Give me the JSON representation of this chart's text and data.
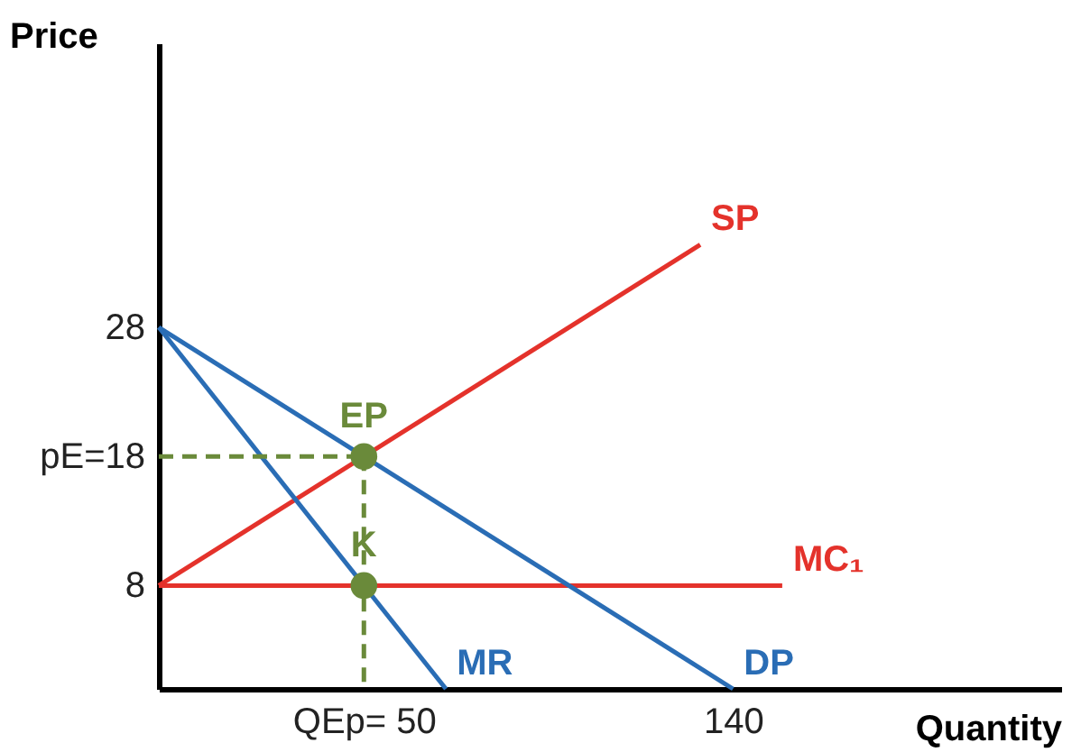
{
  "chart_data": {
    "type": "line",
    "xlabel": "Quantity",
    "ylabel": "Price",
    "xlim": [
      0,
      220
    ],
    "ylim": [
      0,
      50
    ],
    "xticks": [
      {
        "value": 50,
        "label": "QEp= 50"
      },
      140
    ],
    "yticks": [
      8,
      {
        "value": 18,
        "label": "pE=18"
      },
      28
    ],
    "grid": false,
    "tick_labels": "xy",
    "series": [
      {
        "name": "SP",
        "color": "#e4322b",
        "x": [
          0,
          132
        ],
        "values": [
          8,
          34.4
        ]
      },
      {
        "name": "MC₁",
        "color": "#e4322b",
        "x": [
          0,
          152
        ],
        "values": [
          8,
          8
        ]
      },
      {
        "name": "DP",
        "color": "#2a6db5",
        "x": [
          0,
          140
        ],
        "values": [
          28,
          0
        ]
      },
      {
        "name": "MR",
        "color": "#2a6db5",
        "x": [
          0,
          70
        ],
        "values": [
          28,
          0
        ]
      },
      {
        "color": "#6a8a3a",
        "x": [
          0,
          50
        ],
        "values": [
          18,
          18
        ],
        "line_style": "dashed"
      },
      {
        "color": "#6a8a3a",
        "x": [
          50,
          50
        ],
        "values": [
          18,
          0
        ],
        "line_style": "dashed"
      },
      {
        "name": "EP",
        "type": "scatter",
        "marker": "circle",
        "color": "#6a8a3a",
        "x": [
          50
        ],
        "values": [
          18
        ]
      },
      {
        "name": "K",
        "type": "scatter",
        "marker": "circle",
        "color": "#6a8a3a",
        "x": [
          50
        ],
        "values": [
          8
        ]
      }
    ]
  }
}
